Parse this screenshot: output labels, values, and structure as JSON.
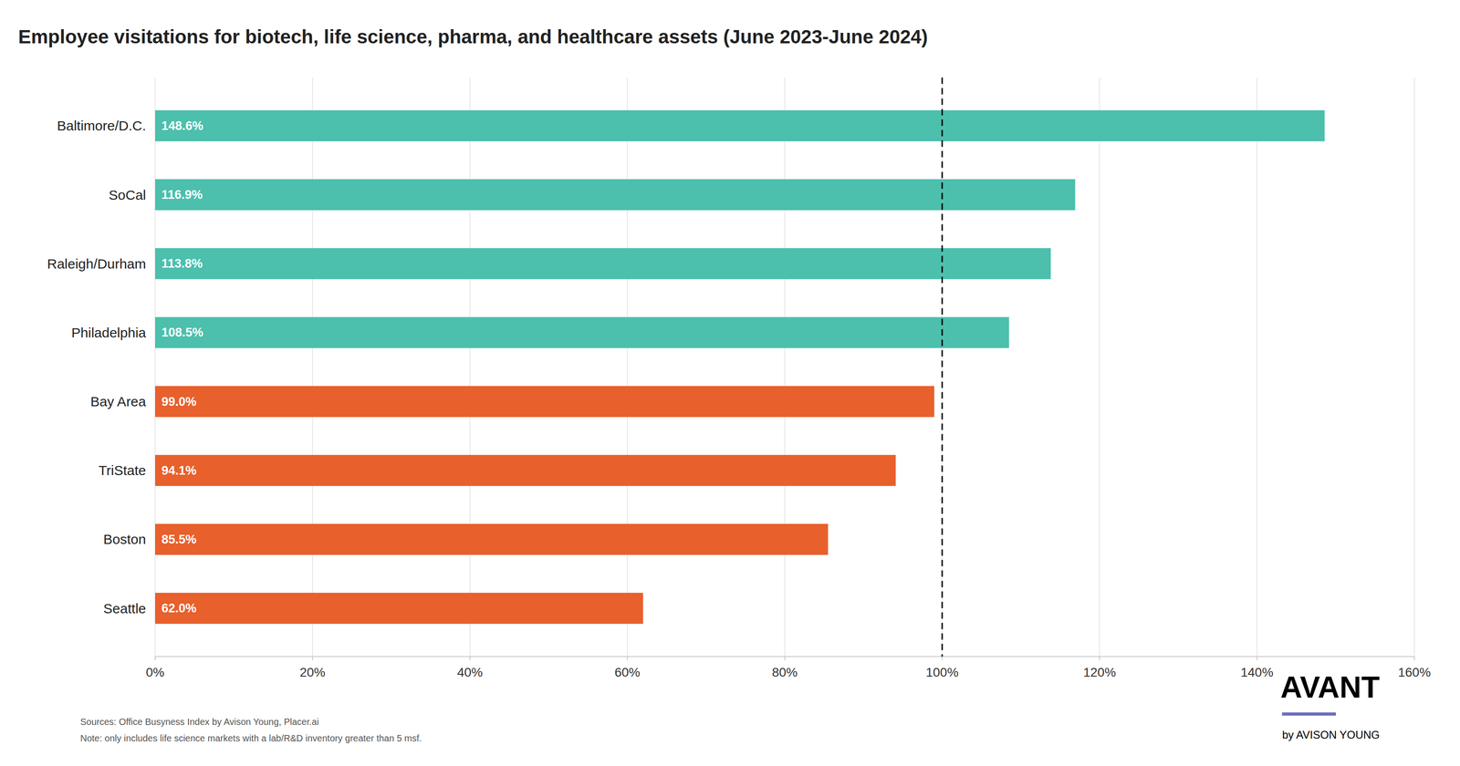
{
  "chart_data": {
    "type": "bar",
    "orientation": "horizontal",
    "title": "Employee visitations for biotech, life science, pharma, and healthcare assets (June 2023-June 2024)",
    "categories": [
      "Baltimore/D.C.",
      "SoCal",
      "Raleigh/Durham",
      "Philadelphia",
      "Bay Area",
      "TriState",
      "Boston",
      "Seattle"
    ],
    "values": [
      148.6,
      116.9,
      113.8,
      108.5,
      99.0,
      94.1,
      85.5,
      62.0
    ],
    "value_labels": [
      "148.6%",
      "116.9%",
      "113.8%",
      "108.5%",
      "99.0%",
      "94.1%",
      "85.5%",
      "62.0%"
    ],
    "colors": [
      "#4cbfad",
      "#4cbfad",
      "#4cbfad",
      "#4cbfad",
      "#e8602c",
      "#e8602c",
      "#e8602c",
      "#e8602c"
    ],
    "data_labels": true,
    "xlim": [
      0,
      160
    ],
    "xticks": [
      {
        "value": 0,
        "label": "0%"
      },
      {
        "value": 20,
        "label": "20%"
      },
      {
        "value": 40,
        "label": "40%"
      },
      {
        "value": 60,
        "label": "60%"
      },
      {
        "value": 80,
        "label": "80%"
      },
      {
        "value": 100,
        "label": "100%"
      },
      {
        "value": 120,
        "label": "120%"
      },
      {
        "value": 140,
        "label": "140%"
      },
      {
        "value": 160,
        "label": "160%"
      }
    ],
    "grid": true,
    "reference_line": 100,
    "source": [
      "Sources: Office Busyness Index by Avison Young, Placer.ai",
      "Note: only includes life science markets with a lab/R&D inventory greater than 5 msf."
    ],
    "logo": {
      "text": "AVANT",
      "subtext": "by AVISON YOUNG",
      "color": "#6b6bbb"
    }
  }
}
